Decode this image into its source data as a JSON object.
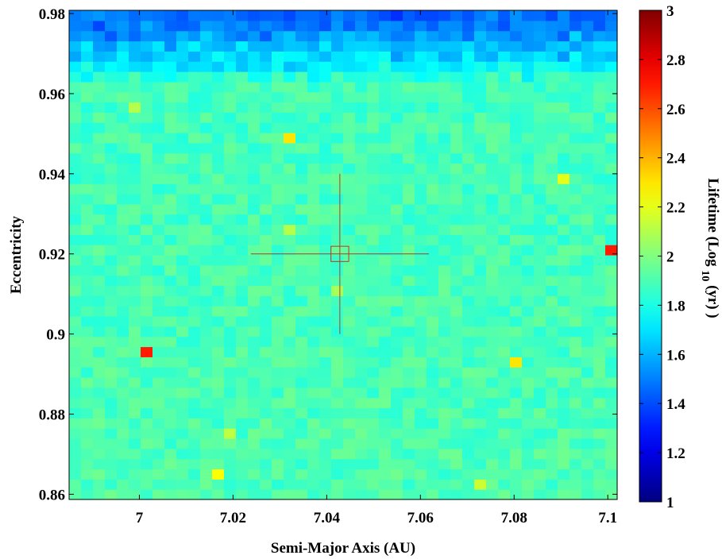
{
  "chart_data": {
    "type": "heatmap",
    "title": "",
    "xlabel": "Semi-Major Axis (AU)",
    "ylabel": "Eccentricity",
    "colorbar_label": {
      "prefix": "Lifetime (Log",
      "subscript": "10",
      "suffix": " (yr) )"
    },
    "colormap": "jet",
    "xlim": [
      6.985,
      7.102
    ],
    "ylim": [
      0.8587,
      0.9808
    ],
    "clim": [
      1,
      3
    ],
    "grid": {
      "nx": 46,
      "ny": 48
    },
    "x_ticks": [
      {
        "value": 7.0,
        "label": "7"
      },
      {
        "value": 7.02,
        "label": "7.02"
      },
      {
        "value": 7.04,
        "label": "7.04"
      },
      {
        "value": 7.06,
        "label": "7.06"
      },
      {
        "value": 7.08,
        "label": "7.08"
      },
      {
        "value": 7.1,
        "label": "7.1"
      }
    ],
    "y_ticks": [
      {
        "value": 0.86,
        "label": "0.86"
      },
      {
        "value": 0.88,
        "label": "0.88"
      },
      {
        "value": 0.9,
        "label": "0.9"
      },
      {
        "value": 0.92,
        "label": "0.92"
      },
      {
        "value": 0.94,
        "label": "0.94"
      },
      {
        "value": 0.96,
        "label": "0.96"
      },
      {
        "value": 0.98,
        "label": "0.98"
      }
    ],
    "colorbar_ticks": [
      {
        "value": 1,
        "label": "1"
      },
      {
        "value": 1.2,
        "label": "1.2"
      },
      {
        "value": 1.4,
        "label": "1.4"
      },
      {
        "value": 1.6,
        "label": "1.6"
      },
      {
        "value": 1.8,
        "label": "1.8"
      },
      {
        "value": 2,
        "label": "2"
      },
      {
        "value": 2.2,
        "label": "2.2"
      },
      {
        "value": 2.4,
        "label": "2.4"
      },
      {
        "value": 2.6,
        "label": "2.6"
      },
      {
        "value": 2.8,
        "label": "2.8"
      },
      {
        "value": 3,
        "label": "3"
      }
    ],
    "background_lifetime_by_e": [
      {
        "e": 0.86,
        "lifetime": 1.9
      },
      {
        "e": 0.963,
        "lifetime": 1.88
      },
      {
        "e": 0.967,
        "lifetime": 1.72
      },
      {
        "e": 0.972,
        "lifetime": 1.62
      },
      {
        "e": 0.976,
        "lifetime": 1.5
      },
      {
        "e": 0.981,
        "lifetime": 1.42
      }
    ],
    "background_noise": 0.07,
    "highlight_cells": [
      {
        "a": 7.0025,
        "e": 0.8958,
        "lifetime": 2.7
      },
      {
        "a": 7.1003,
        "e": 0.9201,
        "lifetime": 2.7
      },
      {
        "a": 7.0318,
        "e": 0.9502,
        "lifetime": 2.3
      },
      {
        "a": 7.0807,
        "e": 0.8932,
        "lifetime": 2.3
      },
      {
        "a": 7.0896,
        "e": 0.9382,
        "lifetime": 2.2
      },
      {
        "a": 7.0165,
        "e": 0.8663,
        "lifetime": 2.25
      },
      {
        "a": 7.0718,
        "e": 0.8634,
        "lifetime": 2.15
      },
      {
        "a": 7.0318,
        "e": 0.9262,
        "lifetime": 2.1
      },
      {
        "a": 7.0191,
        "e": 0.8753,
        "lifetime": 2.12
      },
      {
        "a": 7.0432,
        "e": 0.9112,
        "lifetime": 2.08
      },
      {
        "a": 6.9987,
        "e": 0.9562,
        "lifetime": 2.1
      }
    ],
    "marker": {
      "center": {
        "a": 7.0428,
        "e": 0.92
      },
      "half_width_a": 0.019,
      "half_height_e": 0.02,
      "box_half_a": 0.0019,
      "box_half_e": 0.0019,
      "color": "#b03a2e"
    }
  }
}
